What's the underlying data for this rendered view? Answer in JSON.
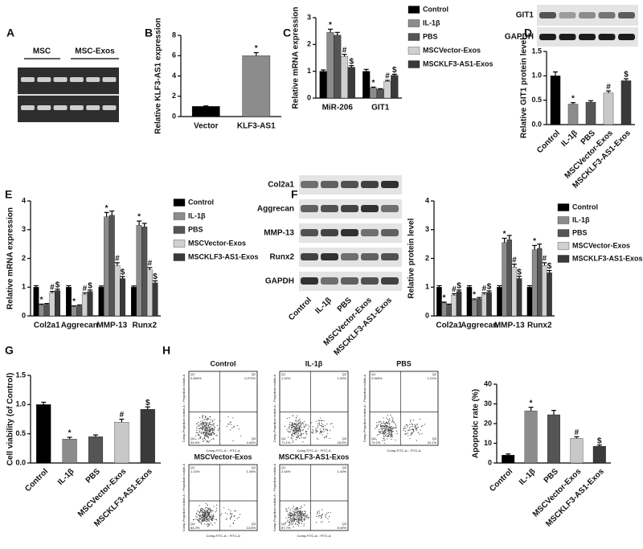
{
  "figure": {
    "panel_labels": [
      "A",
      "B",
      "C",
      "D",
      "E",
      "F",
      "G",
      "H"
    ],
    "gel": {
      "groups": [
        "MSC",
        "MSC-Exos"
      ]
    },
    "blot_D": {
      "rows": [
        "GIT1",
        "GAPDH"
      ]
    },
    "blot_F": {
      "rows": [
        "Col2a1",
        "Aggrecan",
        "MMP-13",
        "Runx2",
        "GAPDH"
      ],
      "lanes": [
        "Control",
        "IL-1β",
        "PBS",
        "MSCVector-Exos",
        "MSCKLF3-AS1-Exos"
      ]
    },
    "flow": {
      "x_label": "Comp-FITC-A :: FITC-A",
      "y_label": "Comp-Propidium Iodide-A :: Propidium Iodide-A",
      "plots": [
        {
          "title": "Control",
          "quadrants": [
            {
              "name": "Q1",
              "value": "0.659%"
            },
            {
              "name": "Q2",
              "value": "0.270%"
            },
            {
              "name": "Q3",
              "value": "4.46%"
            },
            {
              "name": "Q4",
              "value": "94.6%"
            }
          ]
        },
        {
          "title": "IL-1β",
          "quadrants": [
            {
              "name": "Q1",
              "value": "1.32%"
            },
            {
              "name": "Q2",
              "value": "1.03%"
            },
            {
              "name": "Q3",
              "value": "26.5%"
            },
            {
              "name": "Q4",
              "value": "71.1%"
            }
          ]
        },
        {
          "title": "PBS",
          "quadrants": [
            {
              "name": "Q1",
              "value": "0.565%"
            },
            {
              "name": "Q2",
              "value": "1.21%"
            },
            {
              "name": "Q3",
              "value": "24.1%"
            },
            {
              "name": "Q4",
              "value": "74.2%"
            }
          ]
        },
        {
          "title": "MSCVector-Exos",
          "quadrants": [
            {
              "name": "Q1",
              "value": "1.13%"
            },
            {
              "name": "Q2",
              "value": "1.05%"
            },
            {
              "name": "Q3",
              "value": "13.6%"
            },
            {
              "name": "Q4",
              "value": "84.2%"
            }
          ]
        },
        {
          "title": "MSCKLF3-AS1-Exos",
          "quadrants": [
            {
              "name": "Q1",
              "value": "2.44%"
            },
            {
              "name": "Q2",
              "value": "1.40%"
            },
            {
              "name": "Q3",
              "value": "8.49%"
            },
            {
              "name": "Q4",
              "value": "87.7%"
            }
          ]
        }
      ]
    }
  },
  "chart_data": [
    {
      "type": "bar",
      "y_label": "Relative KLF3-AS1 expression",
      "categories": [
        "Vector",
        "KLF3-AS1"
      ],
      "values": [
        1.0,
        6.0
      ],
      "errors": [
        0.05,
        0.3
      ],
      "colors": [
        "#000000",
        "#8c8c8c"
      ],
      "ylim": [
        0,
        8
      ],
      "yticks": [
        0,
        2,
        4,
        6,
        8
      ],
      "annotations": [
        {
          "index": 1,
          "text": "*"
        }
      ]
    },
    {
      "type": "bar",
      "y_label": "Relative mRNA expression",
      "categories": [
        "MiR-206",
        "GIT1"
      ],
      "series": [
        {
          "name": "Control",
          "color": "#000000",
          "values": [
            1.0,
            1.0
          ],
          "errors": [
            0.05,
            0.07
          ]
        },
        {
          "name": "IL-1β",
          "color": "#8c8c8c",
          "values": [
            2.45,
            0.38
          ],
          "errors": [
            0.12,
            0.03
          ]
        },
        {
          "name": "PBS",
          "color": "#555555",
          "values": [
            2.35,
            0.33
          ],
          "errors": [
            0.1,
            0.02
          ]
        },
        {
          "name": "MSCVector-Exos",
          "color": "#d0d0d0",
          "values": [
            1.55,
            0.62
          ],
          "errors": [
            0.08,
            0.04
          ]
        },
        {
          "name": "MSCKLF3-AS1-Exos",
          "color": "#3a3a3a",
          "values": [
            1.15,
            0.85
          ],
          "errors": [
            0.06,
            0.04
          ]
        }
      ],
      "ylim": [
        0,
        3
      ],
      "yticks": [
        0,
        1,
        2,
        3
      ],
      "legend": "right",
      "annotations": [
        {
          "series": 1,
          "index": 0,
          "text": "*"
        },
        {
          "series": 3,
          "index": 0,
          "text": "#"
        },
        {
          "series": 4,
          "index": 0,
          "text": "$"
        },
        {
          "series": 1,
          "index": 1,
          "text": "*"
        },
        {
          "series": 3,
          "index": 1,
          "text": "#"
        },
        {
          "series": 4,
          "index": 1,
          "text": "$"
        }
      ]
    },
    {
      "type": "bar",
      "y_label": "Relative GIT1 protein level",
      "categories": [
        "Control",
        "IL-1β",
        "PBS",
        "MSCVector-Exos",
        "MSCKLF3-AS1-Exos"
      ],
      "values": [
        1.0,
        0.42,
        0.46,
        0.65,
        0.9
      ],
      "errors": [
        0.08,
        0.03,
        0.03,
        0.04,
        0.04
      ],
      "colors": [
        "#000000",
        "#8c8c8c",
        "#555555",
        "#c8c8c8",
        "#3a3a3a"
      ],
      "ylim": [
        0,
        1.5
      ],
      "yticks": [
        {
          "value": 0,
          "label": "0.0"
        },
        0.5,
        {
          "value": 1,
          "label": "1.0"
        },
        1.5
      ],
      "annotations": [
        {
          "index": 1,
          "text": "*"
        },
        {
          "index": 3,
          "text": "#"
        },
        {
          "index": 4,
          "text": "$"
        }
      ]
    },
    {
      "type": "bar",
      "y_label": "Relative mRNA expression",
      "categories": [
        "Col2a1",
        "Aggrecan",
        "MMP-13",
        "Runx2"
      ],
      "series": [
        {
          "name": "Control",
          "color": "#000000",
          "values": [
            1.0,
            1.0,
            1.0,
            1.0
          ],
          "errors": [
            0.05,
            0.05,
            0.04,
            0.04
          ]
        },
        {
          "name": "IL-1β",
          "color": "#8c8c8c",
          "values": [
            0.38,
            0.32,
            3.45,
            3.15
          ],
          "errors": [
            0.03,
            0.03,
            0.15,
            0.15
          ]
        },
        {
          "name": "PBS",
          "color": "#555555",
          "values": [
            0.4,
            0.35,
            3.5,
            3.1
          ],
          "errors": [
            0.03,
            0.03,
            0.15,
            0.12
          ]
        },
        {
          "name": "MSCVector-Exos",
          "color": "#d0d0d0",
          "values": [
            0.8,
            0.75,
            1.75,
            1.6
          ],
          "errors": [
            0.05,
            0.05,
            0.1,
            0.08
          ]
        },
        {
          "name": "MSCKLF3-AS1-Exos",
          "color": "#3a3a3a",
          "values": [
            0.88,
            0.85,
            1.3,
            1.15
          ],
          "errors": [
            0.05,
            0.05,
            0.07,
            0.07
          ]
        }
      ],
      "ylim": [
        0,
        4
      ],
      "yticks": [
        0,
        1,
        2,
        3,
        4
      ],
      "legend": "right",
      "annotations": [
        {
          "series": 1,
          "index": 0,
          "text": "*"
        },
        {
          "series": 3,
          "index": 0,
          "text": "#"
        },
        {
          "series": 4,
          "index": 0,
          "text": "$"
        },
        {
          "series": 1,
          "index": 1,
          "text": "*"
        },
        {
          "series": 3,
          "index": 1,
          "text": "#"
        },
        {
          "series": 4,
          "index": 1,
          "text": "$"
        },
        {
          "series": 1,
          "index": 2,
          "text": "*"
        },
        {
          "series": 3,
          "index": 2,
          "text": "#"
        },
        {
          "series": 4,
          "index": 2,
          "text": "$"
        },
        {
          "series": 1,
          "index": 3,
          "text": "*"
        },
        {
          "series": 3,
          "index": 3,
          "text": "#"
        },
        {
          "series": 4,
          "index": 3,
          "text": "$"
        }
      ]
    },
    {
      "type": "bar",
      "y_label": "Relative protein level",
      "categories": [
        "Col2a1",
        "Aggrecan",
        "MMP-13",
        "Runx2"
      ],
      "series": [
        {
          "name": "Control",
          "color": "#000000",
          "values": [
            1.0,
            1.0,
            1.0,
            1.0
          ],
          "errors": [
            0.05,
            0.05,
            0.05,
            0.05
          ]
        },
        {
          "name": "IL-1β",
          "color": "#8c8c8c",
          "values": [
            0.45,
            0.55,
            2.55,
            2.3
          ],
          "errors": [
            0.03,
            0.04,
            0.15,
            0.15
          ]
        },
        {
          "name": "PBS",
          "color": "#555555",
          "values": [
            0.38,
            0.6,
            2.65,
            2.35
          ],
          "errors": [
            0.03,
            0.04,
            0.15,
            0.15
          ]
        },
        {
          "name": "MSCVector-Exos",
          "color": "#d0d0d0",
          "values": [
            0.72,
            0.75,
            1.7,
            1.75
          ],
          "errors": [
            0.05,
            0.05,
            0.1,
            0.1
          ]
        },
        {
          "name": "MSCKLF3-AS1-Exos",
          "color": "#3a3a3a",
          "values": [
            0.85,
            0.82,
            1.3,
            1.5
          ],
          "errors": [
            0.05,
            0.05,
            0.08,
            0.08
          ]
        }
      ],
      "ylim": [
        0,
        4
      ],
      "yticks": [
        0,
        1,
        2,
        3,
        4
      ],
      "legend": "right",
      "annotations": [
        {
          "series": 1,
          "index": 0,
          "text": "*"
        },
        {
          "series": 3,
          "index": 0,
          "text": "#"
        },
        {
          "series": 4,
          "index": 0,
          "text": "$"
        },
        {
          "series": 1,
          "index": 1,
          "text": "*"
        },
        {
          "series": 3,
          "index": 1,
          "text": "#"
        },
        {
          "series": 4,
          "index": 1,
          "text": "$"
        },
        {
          "series": 1,
          "index": 2,
          "text": "*"
        },
        {
          "series": 3,
          "index": 2,
          "text": "#"
        },
        {
          "series": 4,
          "index": 2,
          "text": "$"
        },
        {
          "series": 1,
          "index": 3,
          "text": "*"
        },
        {
          "series": 3,
          "index": 3,
          "text": "#"
        },
        {
          "series": 4,
          "index": 3,
          "text": "$"
        }
      ]
    },
    {
      "type": "bar",
      "y_label": "Cell viability (of Control)",
      "categories": [
        "Control",
        "IL-1β",
        "PBS",
        "MSCVector-Exos",
        "MSCKLF3-AS1-Exos"
      ],
      "values": [
        1.0,
        0.41,
        0.45,
        0.7,
        0.92
      ],
      "errors": [
        0.04,
        0.03,
        0.03,
        0.05,
        0.04
      ],
      "colors": [
        "#000000",
        "#8c8c8c",
        "#555555",
        "#c8c8c8",
        "#3a3a3a"
      ],
      "ylim": [
        0,
        1.5
      ],
      "yticks": [
        {
          "value": 0,
          "label": "0.0"
        },
        0.5,
        {
          "value": 1,
          "label": "1.0"
        },
        1.5
      ],
      "annotations": [
        {
          "index": 1,
          "text": "*"
        },
        {
          "index": 3,
          "text": "#"
        },
        {
          "index": 4,
          "text": "$"
        }
      ]
    },
    {
      "type": "bar",
      "y_label": "Apoptotic rate (%)",
      "categories": [
        "Control",
        "IL-1β",
        "PBS",
        "MSCVector-Exos",
        "MSCKLF3-AS1-Exos"
      ],
      "values": [
        4,
        26.5,
        24.5,
        12.5,
        8.5
      ],
      "errors": [
        0.6,
        1.8,
        2.2,
        0.8,
        0.6
      ],
      "colors": [
        "#000000",
        "#8c8c8c",
        "#555555",
        "#c8c8c8",
        "#3a3a3a"
      ],
      "ylim": [
        0,
        40
      ],
      "yticks": [
        0,
        10,
        20,
        30,
        40
      ],
      "annotations": [
        {
          "index": 1,
          "text": "*"
        },
        {
          "index": 3,
          "text": "#"
        },
        {
          "index": 4,
          "text": "$"
        }
      ]
    }
  ]
}
